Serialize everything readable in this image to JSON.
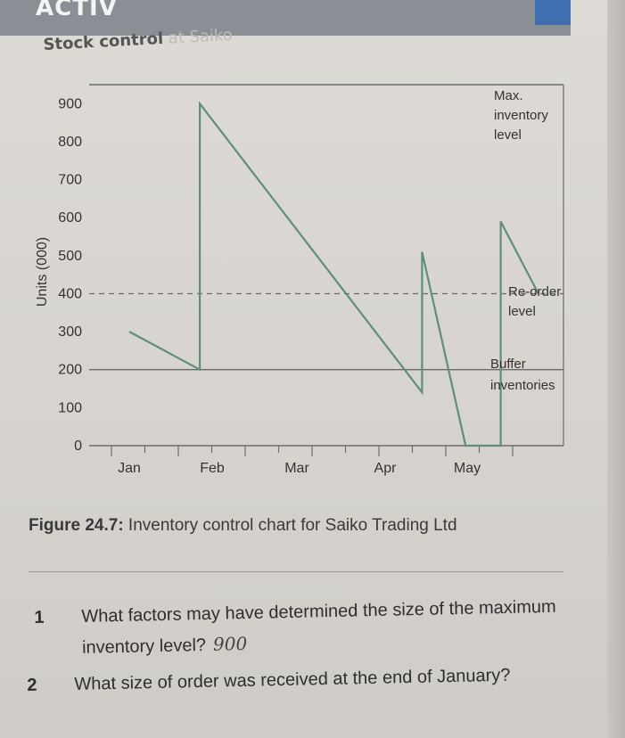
{
  "header": {
    "text": "ACTIV"
  },
  "chart_title": {
    "main": "Stock control",
    "faded": " at Saiko"
  },
  "chart_data": {
    "type": "line",
    "ylabel": "Units (000)",
    "yticks": [
      0,
      100,
      200,
      300,
      400,
      500,
      600,
      700,
      800,
      900
    ],
    "xticks": [
      "Jan",
      "Feb",
      "Mar",
      "Apr",
      "May"
    ],
    "ylim": [
      0,
      950
    ],
    "grid": false,
    "series": [
      {
        "points": [
          {
            "x": 0.0,
            "y": 300
          },
          {
            "x": 0.85,
            "y": 200
          },
          {
            "x": 0.85,
            "y": 900
          },
          {
            "x": 3.45,
            "y": 140
          },
          {
            "x": 3.45,
            "y": 510
          },
          {
            "x": 3.98,
            "y": 0
          },
          {
            "x": 4.4,
            "y": 0
          },
          {
            "x": 4.4,
            "y": 590
          },
          {
            "x": 4.85,
            "y": 400
          }
        ]
      }
    ],
    "reference_lines": [
      {
        "label": "Max. inventory level",
        "y": 950,
        "style": "solid"
      },
      {
        "label": "Re-order level",
        "y": 400,
        "style": "dashed"
      },
      {
        "label": "Buffer inventories",
        "y": 200,
        "style": "solid"
      }
    ],
    "annotations": {
      "max": [
        "Max.",
        "inventory",
        "level"
      ],
      "reorder": [
        "Re-order",
        "level"
      ],
      "buffer": [
        "Buffer",
        "inventories"
      ]
    }
  },
  "caption": {
    "label": "Figure 24.7:",
    "text": " Inventory control chart for Saiko Trading Ltd"
  },
  "questions": [
    {
      "num": "1",
      "text": "What factors may have determined the size of the maximum inventory level?",
      "answer": "900"
    },
    {
      "num": "2",
      "text": "What size of order was received at the end of January?",
      "answer": ""
    }
  ]
}
